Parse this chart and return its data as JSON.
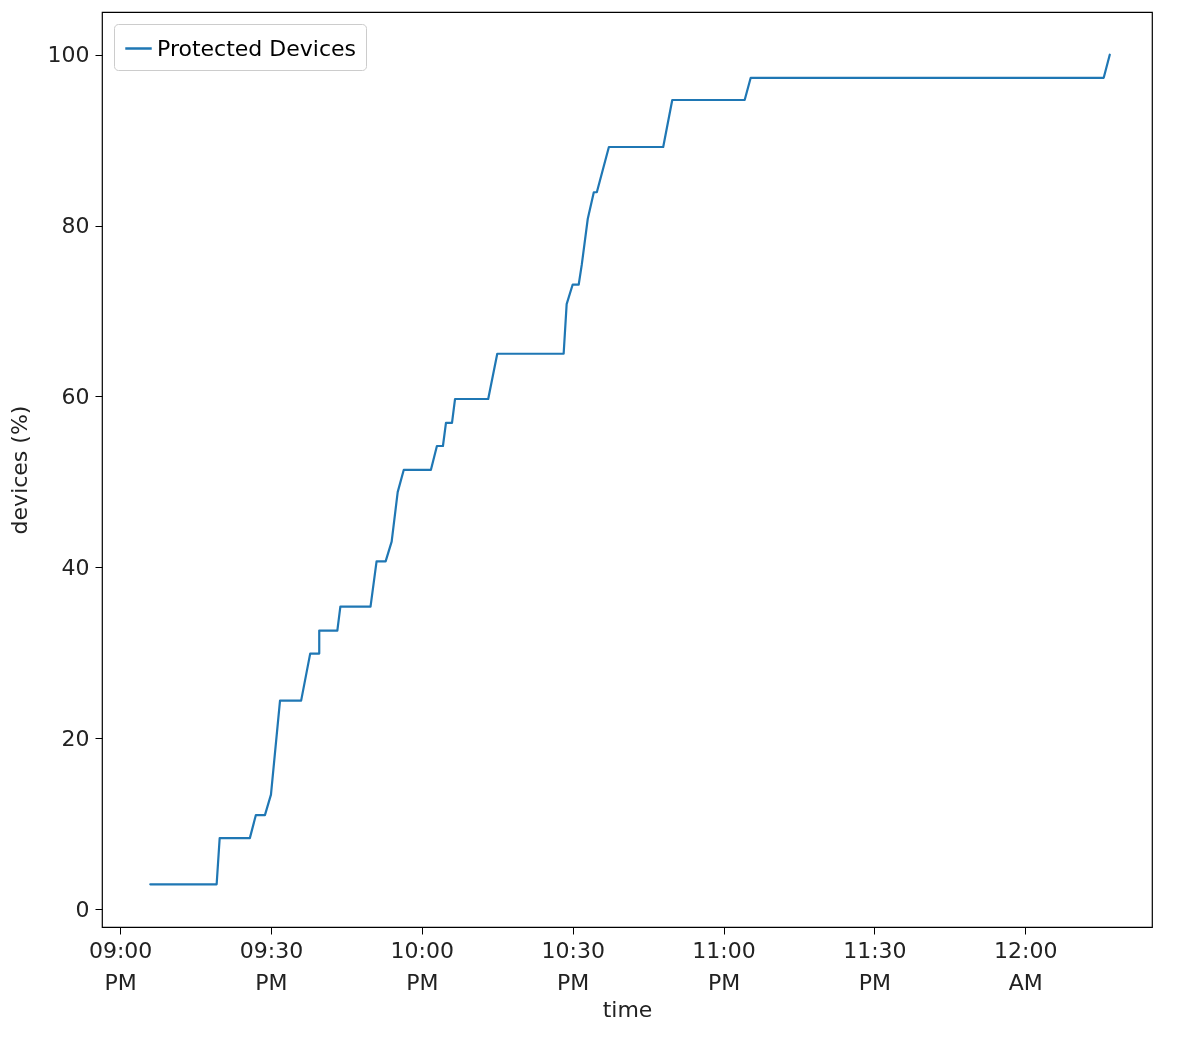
{
  "chart_data": {
    "type": "line",
    "xlabel": "time",
    "ylabel": "devices (%)",
    "x": [
      21.1,
      21.32,
      21.33,
      21.43,
      21.45,
      21.48,
      21.5,
      21.53,
      21.6,
      21.63,
      21.66,
      21.66,
      21.72,
      21.73,
      21.83,
      21.85,
      21.88,
      21.9,
      21.92,
      21.94,
      22.03,
      22.05,
      22.07,
      22.08,
      22.1,
      22.11,
      22.22,
      22.25,
      22.47,
      22.48,
      22.5,
      22.52,
      22.53,
      22.55,
      22.57,
      22.58,
      22.62,
      22.8,
      22.83,
      23.07,
      23.09,
      24.26,
      24.28
    ],
    "series": [
      {
        "name": "Protected Devices",
        "color": "#1f77b4",
        "values": [
          2.9,
          2.9,
          8.3,
          8.3,
          11,
          11,
          13.4,
          24.4,
          24.4,
          29.9,
          29.9,
          32.6,
          32.6,
          35.4,
          35.4,
          40.7,
          40.7,
          43,
          48.8,
          51.4,
          51.4,
          54.2,
          54.2,
          56.9,
          56.9,
          59.7,
          59.7,
          65,
          65,
          70.8,
          73.1,
          73.1,
          75.4,
          80.8,
          83.9,
          83.9,
          89.2,
          89.2,
          94.7,
          94.7,
          97.3,
          97.3,
          100
        ]
      }
    ],
    "xlim": [
      20.94,
      24.42
    ],
    "xticks": [
      {
        "value": 21,
        "label": "09:00\nPM"
      },
      {
        "value": 21.5,
        "label": "09:30\nPM"
      },
      {
        "value": 22,
        "label": "10:00\nPM"
      },
      {
        "value": 22.5,
        "label": "10:30\nPM"
      },
      {
        "value": 23,
        "label": "11:00\nPM"
      },
      {
        "value": 23.5,
        "label": "11:30\nPM"
      },
      {
        "value": 24,
        "label": "12:00\nAM"
      }
    ],
    "ylim": [
      -2.1,
      105
    ],
    "yticks": [
      0,
      20,
      40,
      60,
      80,
      100
    ],
    "legend": "top left",
    "grid": false,
    "line_style": "solid",
    "marker": "none"
  }
}
